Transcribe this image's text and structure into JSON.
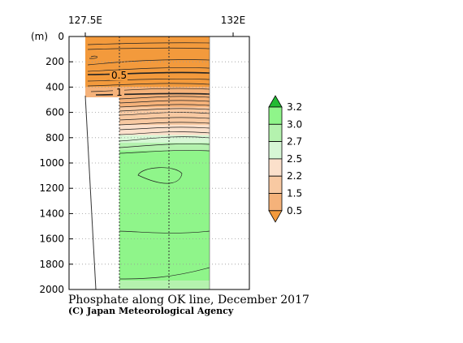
{
  "title": "Phosphate along OK line, December 2017",
  "credit": "(C) Japan Meteorological Agency",
  "chart_data": {
    "type": "heatmap",
    "title": "Phosphate along OK line, December 2017",
    "x_ticks": [
      "127.5E",
      "132E"
    ],
    "y_unit": "(m)",
    "y_ticks": [
      0,
      200,
      400,
      600,
      800,
      1000,
      1200,
      1400,
      1600,
      1800,
      2000
    ],
    "ylim": [
      0,
      2000
    ],
    "y_reversed": true,
    "grid": true,
    "contour_labels": [
      "0.5",
      "1"
    ],
    "colorbar": {
      "levels": [
        "0.5",
        "1.5",
        "2.2",
        "2.5",
        "2.7",
        "3.0",
        "3.2"
      ],
      "colors": [
        "#f39a3c",
        "#f5b27a",
        "#f8c9a2",
        "#fbe0cb",
        "#d7f7d5",
        "#b4f2ae",
        "#8ff58a",
        "#22bb33"
      ]
    },
    "bands": [
      {
        "from_depth": 0,
        "to_depth": 400,
        "color": "#f39a3c"
      },
      {
        "from_depth": 400,
        "to_depth": 560,
        "color": "#f5b27a"
      },
      {
        "from_depth": 560,
        "to_depth": 700,
        "color": "#f8c9a2"
      },
      {
        "from_depth": 700,
        "to_depth": 780,
        "color": "#fbe0cb"
      },
      {
        "from_depth": 780,
        "to_depth": 840,
        "color": "#d7f7d5"
      },
      {
        "from_depth": 840,
        "to_depth": 900,
        "color": "#b4f2ae"
      },
      {
        "from_depth": 900,
        "to_depth": 1930,
        "color": "#8ff58a"
      },
      {
        "from_depth": 1930,
        "to_depth": 2000,
        "color": "#b4f2ae"
      }
    ]
  }
}
